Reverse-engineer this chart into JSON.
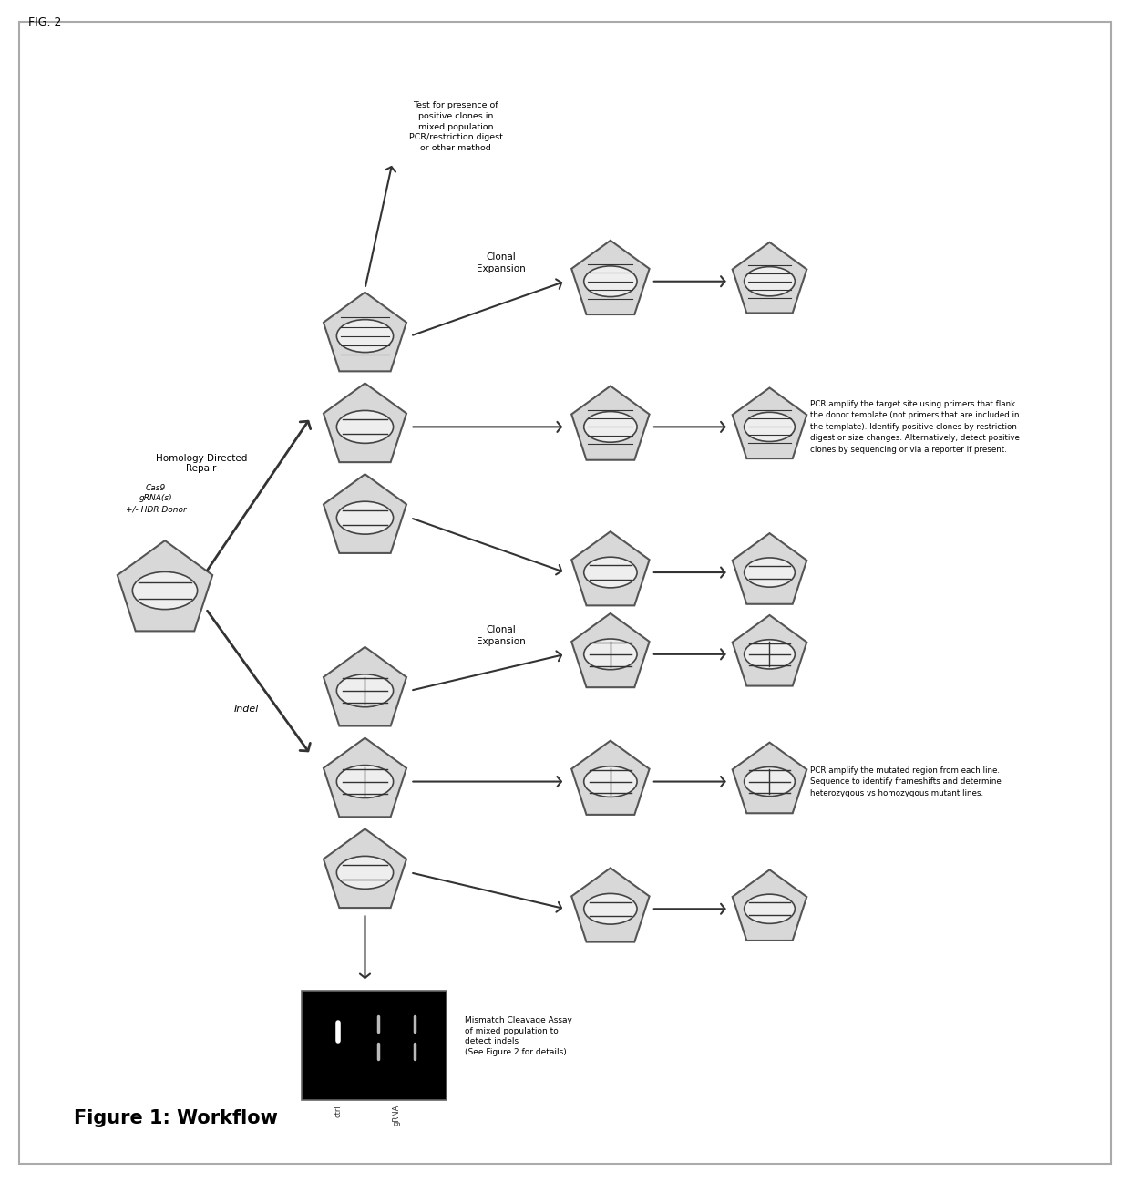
{
  "fig_label": "FIG. 2",
  "title": "Figure 1: Workflow",
  "bg_color": "#ffffff",
  "border_color": "#aaaaaa",
  "cell_fill": "#d8d8d8",
  "cell_edge": "#555555",
  "nucleus_fill": "#eeeeee",
  "nucleus_edge": "#444444",
  "arrow_color": "#222222",
  "text_color": "#222222",
  "label_input": "Cas9\ngRNA(s)\n+/- HDR Donor",
  "label_hdr": "Homology Directed\nRepair",
  "label_indel": "Indel",
  "label_clonal_top": "Clonal\nExpansion",
  "label_clonal_bottom": "Clonal\nExpansion",
  "label_mismatch": "Mismatch Cleavage Assay\nof mixed population to\ndetect indels\n(See Figure 2 for details)",
  "label_test": "Test for presence of\npositive clones in\nmixed population\nPCR/restriction digest\nor other method",
  "label_pcr_top": "PCR amplify the target site using primers that flank\nthe donor template (not primers that are included in\nthe template). Identify positive clones by restriction\ndigest or size changes. Alternatively, detect positive\nclones by sequencing or via a reporter if present.",
  "label_pcr_bottom": "PCR amplify the mutated region from each line.\nSequence to identify frameshifts and determine\nheterozygous vs homozygous mutant lines.",
  "gel_ctrl_label": "ctrl",
  "gel_grna_label": "gRNA"
}
